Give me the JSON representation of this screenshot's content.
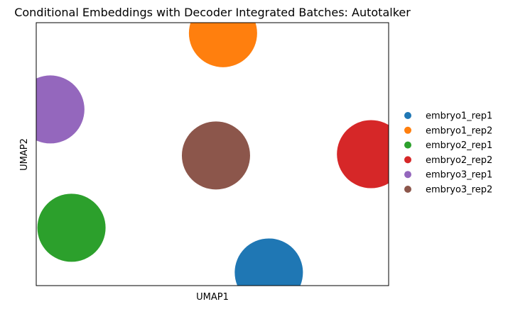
{
  "chart_data": {
    "type": "scatter",
    "title": "Conditional Embeddings with Decoder Integrated Batches: Autotalker",
    "xlabel": "UMAP1",
    "ylabel": "UMAP2",
    "xlim": [
      0.0,
      1.0
    ],
    "ylim": [
      0.0,
      1.0
    ],
    "grid": false,
    "legend_position": "right",
    "series": [
      {
        "name": "embryo1_rep1",
        "color": "#1f77b4",
        "points": [
          {
            "x": 0.66,
            "y": 0.05
          }
        ]
      },
      {
        "name": "embryo1_rep2",
        "color": "#ff7f0e",
        "points": [
          {
            "x": 0.53,
            "y": 0.96
          }
        ]
      },
      {
        "name": "embryo2_rep1",
        "color": "#2ca02c",
        "points": [
          {
            "x": 0.1,
            "y": 0.22
          }
        ]
      },
      {
        "name": "embryo2_rep2",
        "color": "#d62728",
        "points": [
          {
            "x": 0.95,
            "y": 0.5
          }
        ]
      },
      {
        "name": "embryo3_rep1",
        "color": "#9467bd",
        "points": [
          {
            "x": 0.04,
            "y": 0.67
          }
        ]
      },
      {
        "name": "embryo3_rep2",
        "color": "#8c564b",
        "points": [
          {
            "x": 0.51,
            "y": 0.495
          }
        ]
      }
    ]
  }
}
